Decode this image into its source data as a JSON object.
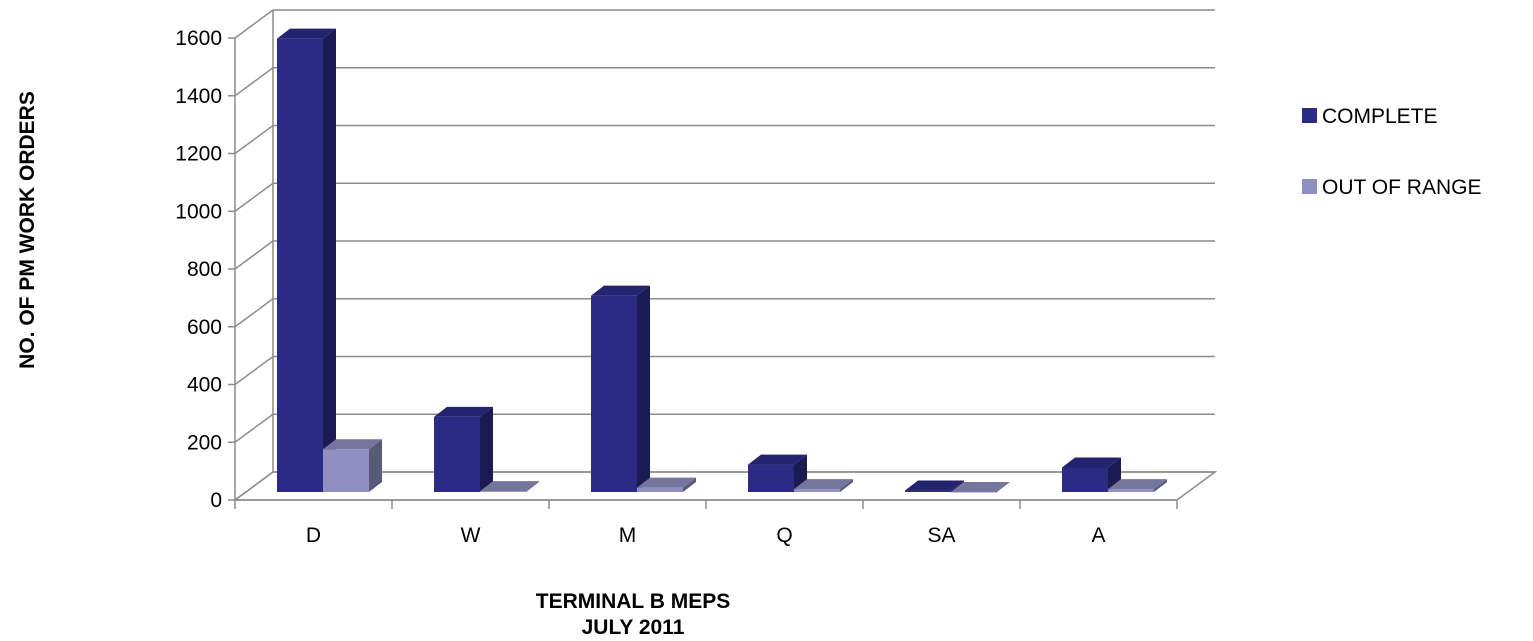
{
  "chart_data": {
    "type": "bar",
    "categories": [
      "D",
      "W",
      "M",
      "Q",
      "SA",
      "A"
    ],
    "series": [
      {
        "name": "COMPLETE",
        "values": [
          1570,
          260,
          680,
          95,
          5,
          85
        ],
        "color": "#2b2b86"
      },
      {
        "name": "OUT OF RANGE",
        "values": [
          148,
          3,
          15,
          10,
          0,
          10
        ],
        "color": "#8f8fc1"
      }
    ],
    "ylabel": "NO. OF PM WORK ORDERS",
    "xlabel": [
      "TERMINAL B MEPS",
      "JULY 2011"
    ],
    "ylim": [
      0,
      1600
    ],
    "yticks": [
      0,
      200,
      400,
      600,
      800,
      1000,
      1200,
      1400,
      1600
    ],
    "grid": true,
    "legend_position": "right",
    "three_d": true
  }
}
